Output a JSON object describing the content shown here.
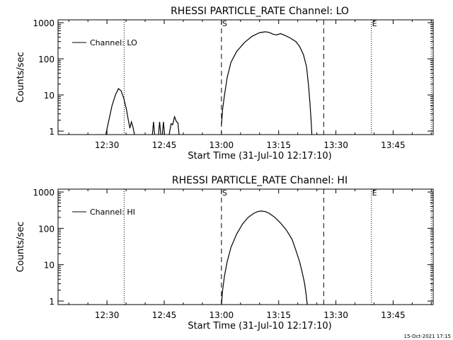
{
  "footer_timestamp": "15-Oct-2021 17:15",
  "chart_data": [
    {
      "type": "line",
      "title": "RHESSI PARTICLE_RATE Channel: LO",
      "xlabel": "Start Time (31-Jul-10 12:17:10)",
      "ylabel": "Counts/sec",
      "yscale": "log",
      "xlim": [
        17.17,
        115.5
      ],
      "ylim": [
        0.8,
        1200
      ],
      "xticks": [
        {
          "v": 30,
          "label": "12:30"
        },
        {
          "v": 45,
          "label": "12:45"
        },
        {
          "v": 60,
          "label": "13:00"
        },
        {
          "v": 75,
          "label": "13:15"
        },
        {
          "v": 90,
          "label": "13:30"
        },
        {
          "v": 105,
          "label": "13:45"
        }
      ],
      "yticks": [
        {
          "v": 1,
          "label": "1"
        },
        {
          "v": 10,
          "label": "10"
        },
        {
          "v": 100,
          "label": "100"
        },
        {
          "v": 1000,
          "label": "1000"
        }
      ],
      "legend": {
        "label": "Channel: LO",
        "position": "top-left"
      },
      "markers": [
        {
          "x": 34.5,
          "style": "dotted",
          "label": ""
        },
        {
          "x": 60.0,
          "style": "dashed",
          "label": "S"
        },
        {
          "x": 86.8,
          "style": "dashed",
          "label": ""
        },
        {
          "x": 99.3,
          "style": "dotted",
          "label": "E"
        },
        {
          "x": 115.0,
          "style": "dotted",
          "label": ""
        }
      ],
      "series": [
        {
          "name": "Channel: LO",
          "segments": [
            [
              [
                29.7,
                0.8
              ],
              [
                30.5,
                2
              ],
              [
                31.3,
                5
              ],
              [
                32.2,
                10
              ],
              [
                33.0,
                15
              ],
              [
                33.7,
                13
              ],
              [
                34.4,
                8
              ],
              [
                35.1,
                4
              ],
              [
                35.6,
                2
              ],
              [
                36.0,
                1.2
              ],
              [
                36.4,
                1.8
              ],
              [
                36.8,
                1.3
              ],
              [
                37.2,
                0.8
              ]
            ],
            [
              [
                41.9,
                0.8
              ],
              [
                42.2,
                1.8
              ],
              [
                42.5,
                0.8
              ]
            ],
            [
              [
                43.5,
                0.8
              ],
              [
                43.8,
                1.8
              ],
              [
                44.1,
                0.8
              ]
            ],
            [
              [
                44.5,
                0.8
              ],
              [
                44.8,
                1.8
              ],
              [
                45.1,
                0.8
              ]
            ],
            [
              [
                46.3,
                0.8
              ],
              [
                46.8,
                1.6
              ],
              [
                47.2,
                1.5
              ],
              [
                47.7,
                2.5
              ],
              [
                48.2,
                1.8
              ],
              [
                48.6,
                1.7
              ],
              [
                48.9,
                0.8
              ]
            ],
            [
              [
                60.0,
                1.5
              ],
              [
                60.3,
                4
              ],
              [
                60.8,
                10
              ],
              [
                61.5,
                30
              ],
              [
                62.5,
                80
              ],
              [
                64.0,
                160
              ],
              [
                66.0,
                280
              ],
              [
                68.0,
                420
              ],
              [
                70.0,
                530
              ],
              [
                71.5,
                560
              ],
              [
                72.5,
                540
              ],
              [
                73.5,
                480
              ],
              [
                74.5,
                460
              ],
              [
                75.5,
                500
              ],
              [
                76.5,
                450
              ],
              [
                78.0,
                380
              ],
              [
                79.5,
                300
              ],
              [
                80.5,
                220
              ],
              [
                81.5,
                130
              ],
              [
                82.3,
                60
              ],
              [
                82.8,
                20
              ],
              [
                83.2,
                6
              ],
              [
                83.5,
                2
              ],
              [
                83.7,
                0.8
              ]
            ]
          ]
        }
      ]
    },
    {
      "type": "line",
      "title": "RHESSI PARTICLE_RATE Channel: HI",
      "xlabel": "Start Time (31-Jul-10 12:17:10)",
      "ylabel": "Counts/sec",
      "yscale": "log",
      "xlim": [
        17.17,
        115.5
      ],
      "ylim": [
        0.8,
        1200
      ],
      "xticks": [
        {
          "v": 30,
          "label": "12:30"
        },
        {
          "v": 45,
          "label": "12:45"
        },
        {
          "v": 60,
          "label": "13:00"
        },
        {
          "v": 75,
          "label": "13:15"
        },
        {
          "v": 90,
          "label": "13:30"
        },
        {
          "v": 105,
          "label": "13:45"
        }
      ],
      "yticks": [
        {
          "v": 1,
          "label": "1"
        },
        {
          "v": 10,
          "label": "10"
        },
        {
          "v": 100,
          "label": "100"
        },
        {
          "v": 1000,
          "label": "1000"
        }
      ],
      "legend": {
        "label": "Channel: HI",
        "position": "top-left"
      },
      "markers": [
        {
          "x": 34.5,
          "style": "dotted",
          "label": ""
        },
        {
          "x": 60.0,
          "style": "dashed",
          "label": "S"
        },
        {
          "x": 86.8,
          "style": "dashed",
          "label": ""
        },
        {
          "x": 99.3,
          "style": "dotted",
          "label": "E"
        },
        {
          "x": 115.0,
          "style": "dotted",
          "label": ""
        }
      ],
      "series": [
        {
          "name": "Channel: HI",
          "segments": [
            [
              [
                60.0,
                0.8
              ],
              [
                60.3,
                2
              ],
              [
                60.8,
                5
              ],
              [
                61.5,
                12
              ],
              [
                62.5,
                30
              ],
              [
                64.0,
                70
              ],
              [
                65.5,
                130
              ],
              [
                67.0,
                200
              ],
              [
                68.5,
                260
              ],
              [
                69.5,
                290
              ],
              [
                70.5,
                300
              ],
              [
                71.5,
                290
              ],
              [
                72.5,
                260
              ],
              [
                74.0,
                200
              ],
              [
                75.5,
                140
              ],
              [
                77.0,
                90
              ],
              [
                78.5,
                50
              ],
              [
                79.5,
                25
              ],
              [
                80.5,
                12
              ],
              [
                81.2,
                6
              ],
              [
                81.8,
                3
              ],
              [
                82.2,
                1.5
              ],
              [
                82.5,
                0.8
              ]
            ]
          ]
        }
      ]
    }
  ]
}
